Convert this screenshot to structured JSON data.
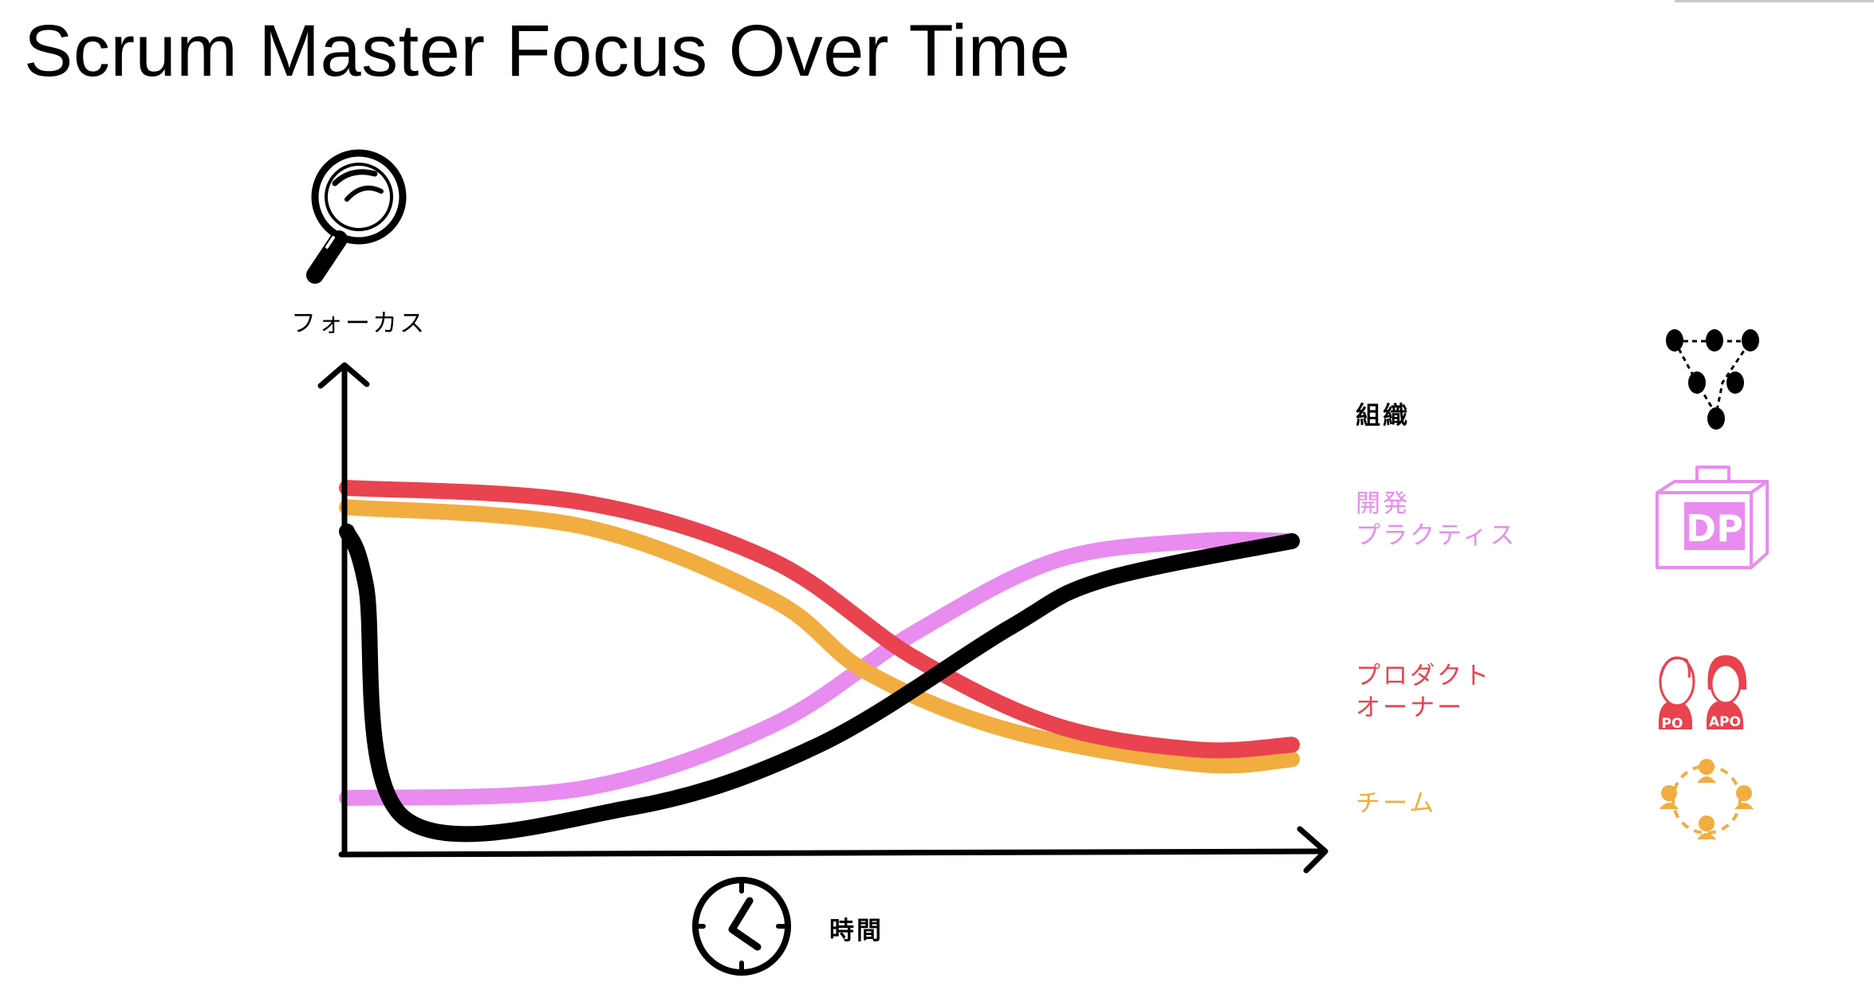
{
  "title": "Scrum Master Focus Over Time",
  "y_axis_label": "フォーカス",
  "x_axis_label": "時間",
  "colors": {
    "organization": "#000000",
    "dev_practices": "#e88cf0",
    "product_owner": "#e8434f",
    "team": "#f2ad40",
    "axis": "#000000"
  },
  "chart_data": {
    "type": "line",
    "xlabel": "時間",
    "ylabel": "フォーカス",
    "series": [
      {
        "name": "組織",
        "color": "#000000",
        "points": [
          [
            0,
            66
          ],
          [
            2,
            55
          ],
          [
            6,
            7
          ],
          [
            30,
            9
          ],
          [
            50,
            22
          ],
          [
            70,
            46
          ],
          [
            80,
            56
          ],
          [
            100,
            64
          ]
        ]
      },
      {
        "name": "開発 プラクティス",
        "color": "#e88cf0",
        "points": [
          [
            0,
            11
          ],
          [
            25,
            13
          ],
          [
            45,
            26
          ],
          [
            60,
            45
          ],
          [
            75,
            60
          ],
          [
            90,
            64
          ],
          [
            100,
            64
          ]
        ]
      },
      {
        "name": "プロダクト オーナー",
        "color": "#e8434f",
        "points": [
          [
            0,
            75
          ],
          [
            25,
            72
          ],
          [
            45,
            60
          ],
          [
            60,
            40
          ],
          [
            75,
            26
          ],
          [
            90,
            21
          ],
          [
            100,
            22
          ]
        ]
      },
      {
        "name": "チーム",
        "color": "#f2ad40",
        "points": [
          [
            0,
            71
          ],
          [
            25,
            67
          ],
          [
            45,
            52
          ],
          [
            55,
            37
          ],
          [
            70,
            25
          ],
          [
            90,
            18
          ],
          [
            100,
            19
          ]
        ]
      }
    ]
  },
  "legend": [
    {
      "label_line1": "組織",
      "label_line2": "",
      "icon": "org-triangle-icon"
    },
    {
      "label_line1": "開発",
      "label_line2": "プラクティス",
      "icon": "dp-bag-icon",
      "icon_text": "DP"
    },
    {
      "label_line1": "プロダクト",
      "label_line2": "オーナー",
      "icon": "po-apo-people-icon",
      "badge_left": "PO",
      "badge_right": "APO"
    },
    {
      "label_line1": "チーム",
      "label_line2": "",
      "icon": "team-circle-icon"
    }
  ]
}
